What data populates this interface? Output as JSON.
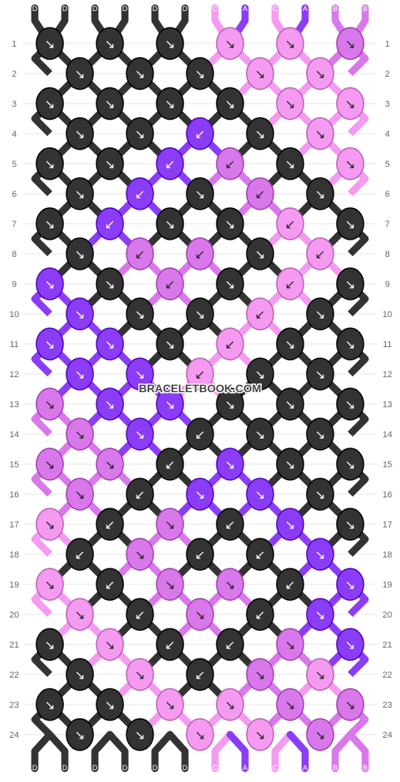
{
  "pattern": {
    "watermark": "BRACELETBOOK.COM",
    "strings": [
      {
        "label": "D",
        "color": "#333333"
      },
      {
        "label": "D",
        "color": "#333333"
      },
      {
        "label": "D",
        "color": "#333333"
      },
      {
        "label": "D",
        "color": "#333333"
      },
      {
        "label": "D",
        "color": "#333333"
      },
      {
        "label": "D",
        "color": "#333333"
      },
      {
        "label": "C",
        "color": "#f49af0"
      },
      {
        "label": "A",
        "color": "#8b3df5"
      },
      {
        "label": "C",
        "color": "#f49af0"
      },
      {
        "label": "A",
        "color": "#8b3df5"
      },
      {
        "label": "B",
        "color": "#d978ea"
      },
      {
        "label": "B",
        "color": "#d978ea"
      }
    ],
    "colors": {
      "D": "#333333",
      "C": "#f49af0",
      "A": "#8b3df5",
      "B": "#d978ea"
    },
    "rows": [
      {
        "number": "1",
        "knots": [
          {
            "c": "D",
            "d": "↘"
          },
          {
            "c": "D",
            "d": "↘"
          },
          {
            "c": "D",
            "d": "↘"
          },
          {
            "c": "C",
            "d": "↘"
          },
          {
            "c": "C",
            "d": "↘"
          },
          {
            "c": "B",
            "d": "↘"
          }
        ]
      },
      {
        "number": "2",
        "knots": [
          {
            "c": "D",
            "d": "↘"
          },
          {
            "c": "D",
            "d": "↘"
          },
          {
            "c": "D",
            "d": "↘"
          },
          {
            "c": "C",
            "d": "↘"
          },
          {
            "c": "C",
            "d": "↘"
          }
        ]
      },
      {
        "number": "3",
        "knots": [
          {
            "c": "D",
            "d": "↘"
          },
          {
            "c": "D",
            "d": "↘"
          },
          {
            "c": "D",
            "d": "↘"
          },
          {
            "c": "D",
            "d": "↘"
          },
          {
            "c": "C",
            "d": "↘"
          },
          {
            "c": "C",
            "d": "↘"
          }
        ]
      },
      {
        "number": "4",
        "knots": [
          {
            "c": "D",
            "d": "↘"
          },
          {
            "c": "D",
            "d": "↘"
          },
          {
            "c": "A",
            "d": "↙"
          },
          {
            "c": "D",
            "d": "↘"
          },
          {
            "c": "C",
            "d": "↘"
          }
        ]
      },
      {
        "number": "5",
        "knots": [
          {
            "c": "D",
            "d": "↘"
          },
          {
            "c": "D",
            "d": "↘"
          },
          {
            "c": "A",
            "d": "↙"
          },
          {
            "c": "B",
            "d": "↙"
          },
          {
            "c": "D",
            "d": "↘"
          },
          {
            "c": "C",
            "d": "↘"
          }
        ]
      },
      {
        "number": "6",
        "knots": [
          {
            "c": "D",
            "d": "↘"
          },
          {
            "c": "A",
            "d": "↙"
          },
          {
            "c": "D",
            "d": "↘"
          },
          {
            "c": "B",
            "d": "↙"
          },
          {
            "c": "D",
            "d": "↘"
          }
        ]
      },
      {
        "number": "7",
        "knots": [
          {
            "c": "D",
            "d": "↘"
          },
          {
            "c": "A",
            "d": "↙"
          },
          {
            "c": "D",
            "d": "↘"
          },
          {
            "c": "D",
            "d": "↘"
          },
          {
            "c": "C",
            "d": "↙"
          },
          {
            "c": "D",
            "d": "↘"
          }
        ]
      },
      {
        "number": "8",
        "knots": [
          {
            "c": "D",
            "d": "↘"
          },
          {
            "c": "B",
            "d": "↙"
          },
          {
            "c": "B",
            "d": "↙"
          },
          {
            "c": "D",
            "d": "↘"
          },
          {
            "c": "C",
            "d": "↙"
          }
        ]
      },
      {
        "number": "9",
        "knots": [
          {
            "c": "A",
            "d": "↘"
          },
          {
            "c": "D",
            "d": "↘"
          },
          {
            "c": "B",
            "d": "↙"
          },
          {
            "c": "D",
            "d": "↘"
          },
          {
            "c": "C",
            "d": "↙"
          },
          {
            "c": "D",
            "d": "↘"
          }
        ]
      },
      {
        "number": "10",
        "knots": [
          {
            "c": "A",
            "d": "↘"
          },
          {
            "c": "D",
            "d": "↘"
          },
          {
            "c": "D",
            "d": "↘"
          },
          {
            "c": "C",
            "d": "↙"
          },
          {
            "c": "D",
            "d": "↘"
          }
        ]
      },
      {
        "number": "11",
        "knots": [
          {
            "c": "A",
            "d": "↘"
          },
          {
            "c": "A",
            "d": "↘"
          },
          {
            "c": "D",
            "d": "↘"
          },
          {
            "c": "C",
            "d": "↙"
          },
          {
            "c": "D",
            "d": "↘"
          },
          {
            "c": "D",
            "d": "↘"
          }
        ]
      },
      {
        "number": "12",
        "knots": [
          {
            "c": "A",
            "d": "↘"
          },
          {
            "c": "A",
            "d": "↘"
          },
          {
            "c": "C",
            "d": "↙"
          },
          {
            "c": "D",
            "d": "↘"
          },
          {
            "c": "D",
            "d": "↘"
          }
        ]
      },
      {
        "number": "13",
        "knots": [
          {
            "c": "B",
            "d": "↘"
          },
          {
            "c": "A",
            "d": "↘"
          },
          {
            "c": "A",
            "d": "↘"
          },
          {
            "c": "D",
            "d": "↘"
          },
          {
            "c": "D",
            "d": "↘"
          },
          {
            "c": "D",
            "d": "↘"
          }
        ]
      },
      {
        "number": "14",
        "knots": [
          {
            "c": "B",
            "d": "↘"
          },
          {
            "c": "A",
            "d": "↘"
          },
          {
            "c": "D",
            "d": "↙"
          },
          {
            "c": "D",
            "d": "↘"
          },
          {
            "c": "D",
            "d": "↘"
          }
        ]
      },
      {
        "number": "15",
        "knots": [
          {
            "c": "B",
            "d": "↘"
          },
          {
            "c": "B",
            "d": "↘"
          },
          {
            "c": "D",
            "d": "↙"
          },
          {
            "c": "A",
            "d": "↘"
          },
          {
            "c": "D",
            "d": "↘"
          },
          {
            "c": "D",
            "d": "↘"
          }
        ]
      },
      {
        "number": "16",
        "knots": [
          {
            "c": "B",
            "d": "↘"
          },
          {
            "c": "D",
            "d": "↙"
          },
          {
            "c": "A",
            "d": "↘"
          },
          {
            "c": "A",
            "d": "↘"
          },
          {
            "c": "D",
            "d": "↘"
          }
        ]
      },
      {
        "number": "17",
        "knots": [
          {
            "c": "C",
            "d": "↘"
          },
          {
            "c": "D",
            "d": "↙"
          },
          {
            "c": "B",
            "d": "↘"
          },
          {
            "c": "D",
            "d": "↙"
          },
          {
            "c": "A",
            "d": "↘"
          },
          {
            "c": "D",
            "d": "↘"
          }
        ]
      },
      {
        "number": "18",
        "knots": [
          {
            "c": "D",
            "d": "↙"
          },
          {
            "c": "B",
            "d": "↘"
          },
          {
            "c": "D",
            "d": "↙"
          },
          {
            "c": "D",
            "d": "↙"
          },
          {
            "c": "A",
            "d": "↘"
          }
        ]
      },
      {
        "number": "19",
        "knots": [
          {
            "c": "C",
            "d": "↘"
          },
          {
            "c": "D",
            "d": "↙"
          },
          {
            "c": "B",
            "d": "↘"
          },
          {
            "c": "B",
            "d": "↘"
          },
          {
            "c": "D",
            "d": "↙"
          },
          {
            "c": "A",
            "d": "↘"
          }
        ]
      },
      {
        "number": "20",
        "knots": [
          {
            "c": "C",
            "d": "↘"
          },
          {
            "c": "D",
            "d": "↙"
          },
          {
            "c": "B",
            "d": "↘"
          },
          {
            "c": "D",
            "d": "↙"
          },
          {
            "c": "A",
            "d": "↘"
          }
        ]
      },
      {
        "number": "21",
        "knots": [
          {
            "c": "D",
            "d": "↘"
          },
          {
            "c": "C",
            "d": "↘"
          },
          {
            "c": "D",
            "d": "↙"
          },
          {
            "c": "D",
            "d": "↙"
          },
          {
            "c": "B",
            "d": "↘"
          },
          {
            "c": "A",
            "d": "↘"
          }
        ]
      },
      {
        "number": "22",
        "knots": [
          {
            "c": "D",
            "d": "↘"
          },
          {
            "c": "C",
            "d": "↘"
          },
          {
            "c": "D",
            "d": "↙"
          },
          {
            "c": "B",
            "d": "↘"
          },
          {
            "c": "C",
            "d": "↘"
          }
        ]
      },
      {
        "number": "23",
        "knots": [
          {
            "c": "D",
            "d": "↘"
          },
          {
            "c": "D",
            "d": "↘"
          },
          {
            "c": "C",
            "d": "↘"
          },
          {
            "c": "C",
            "d": "↘"
          },
          {
            "c": "B",
            "d": "↘"
          },
          {
            "c": "B",
            "d": "↘"
          }
        ]
      },
      {
        "number": "24",
        "knots": [
          {
            "c": "D",
            "d": "↘"
          },
          {
            "c": "D",
            "d": "↘"
          },
          {
            "c": "C",
            "d": "↘"
          },
          {
            "c": "C",
            "d": "↘"
          },
          {
            "c": "B",
            "d": "↘"
          }
        ]
      }
    ]
  }
}
